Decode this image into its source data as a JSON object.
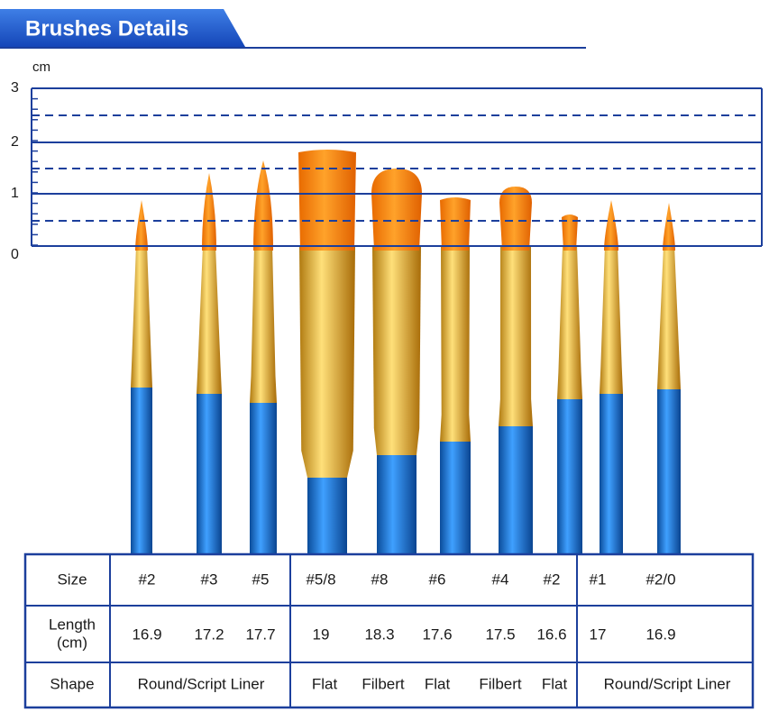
{
  "header": {
    "title": "Brushes Details"
  },
  "scale": {
    "unit": "cm",
    "labels": [
      "3",
      "2",
      "1",
      "0"
    ]
  },
  "table": {
    "size": {
      "label": "Size",
      "cells": [
        "#2",
        "#3",
        "#5",
        "#5/8",
        "#8",
        "#6",
        "#4",
        "#2",
        "#1",
        "#2/0"
      ]
    },
    "length": {
      "label": [
        "Length",
        "(cm)"
      ],
      "cells": [
        16.9,
        17.2,
        17.7,
        19,
        18.3,
        17.6,
        17.5,
        16.6,
        17,
        16.9
      ]
    },
    "shape": {
      "label": "Shape",
      "cells": [
        "Round/Script Liner",
        "Flat",
        "Filbert",
        "Flat",
        "Filbert",
        "Flat",
        "Round/Script Liner"
      ]
    }
  }
}
